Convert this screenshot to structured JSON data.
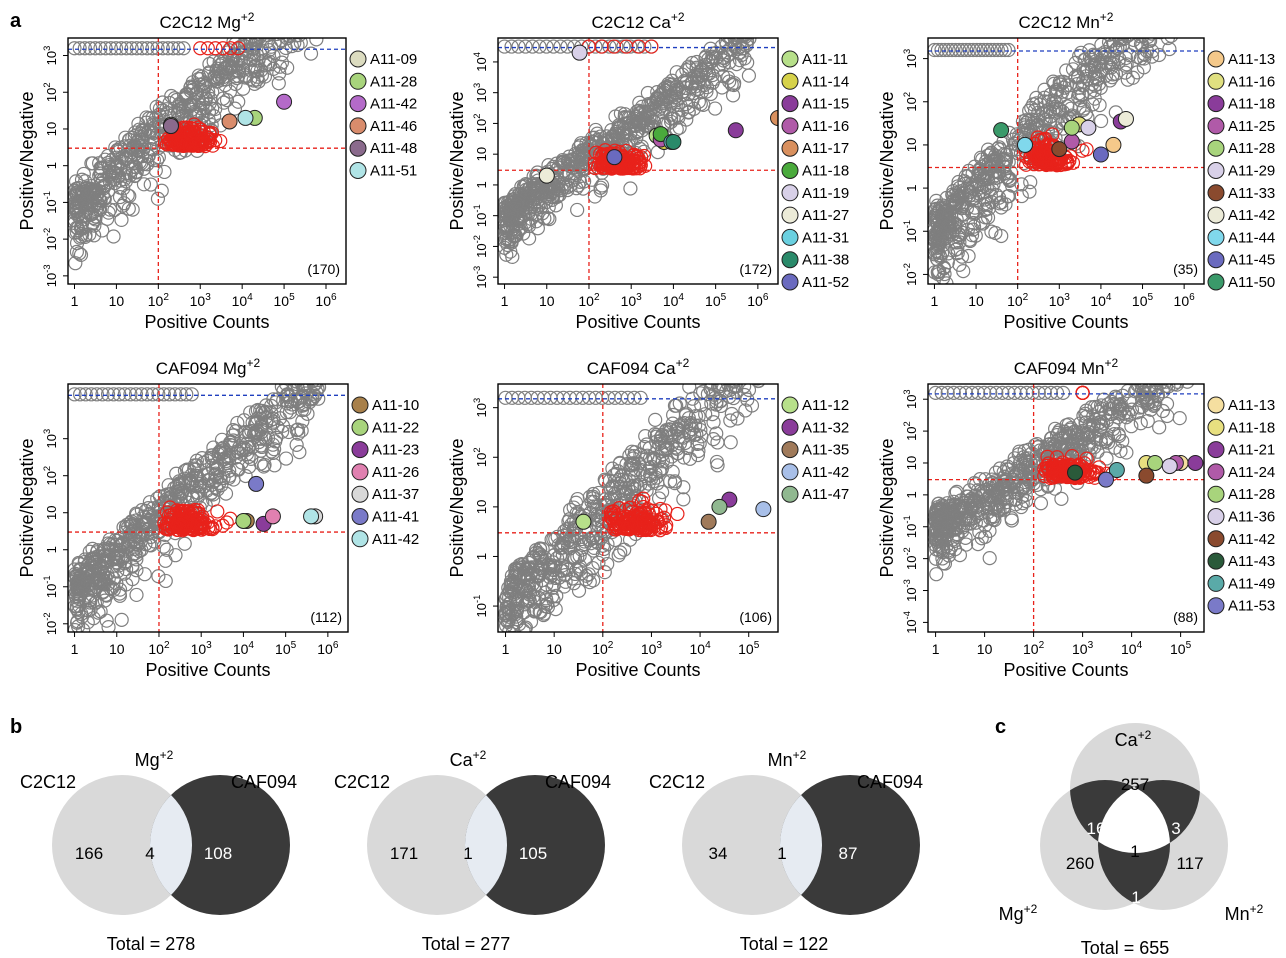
{
  "panel_labels": {
    "a": "a",
    "b": "b",
    "c": "c"
  },
  "colors": {
    "grey_points": "#7f7f7f",
    "red_points": "#e8221b",
    "red_threshold": "#e8221b",
    "blue_threshold": "#1f3fbf",
    "venn_light": "#d9d9d9",
    "venn_dark": "#3a3a3a",
    "venn_overlap": "#e6ebf2"
  },
  "chart_data": [
    {
      "type": "scatter",
      "title": "C2C12 Mg+2",
      "title_base": "C2C12 Mg",
      "title_sup": "+2",
      "xlabel": "Positive Counts",
      "ylabel": "Positive/Negative",
      "x_scale": "log",
      "y_scale": "log",
      "xlim": [
        0.7,
        3000000
      ],
      "ylim": [
        0.0006,
        3000
      ],
      "x_ticks": [
        1,
        10,
        100,
        1000,
        10000,
        100000,
        1000000
      ],
      "x_tick_labels": [
        {
          "base": "1"
        },
        {
          "base": "10"
        },
        {
          "base": "10",
          "exp": "2"
        },
        {
          "base": "10",
          "exp": "3"
        },
        {
          "base": "10",
          "exp": "4"
        },
        {
          "base": "10",
          "exp": "5"
        },
        {
          "base": "10",
          "exp": "6"
        }
      ],
      "y_ticks": [
        0.001,
        0.01,
        0.1,
        1,
        10,
        100,
        1000
      ],
      "y_tick_labels": [
        {
          "base": "10",
          "exp": "-3"
        },
        {
          "base": "10",
          "exp": "-2"
        },
        {
          "base": "10",
          "exp": "-1"
        },
        {
          "base": "1"
        },
        {
          "base": "10"
        },
        {
          "base": "10",
          "exp": "2"
        },
        {
          "base": "10",
          "exp": "3"
        }
      ],
      "x_threshold": 100,
      "y_threshold": 3,
      "annotation": "(170)",
      "highlighted": [
        {
          "label": "A11-09",
          "color": "#dcdcc0",
          "x": 200,
          "y": 13
        },
        {
          "label": "A11-28",
          "color": "#a8d47c",
          "x": 20000,
          "y": 20
        },
        {
          "label": "A11-42",
          "color": "#b46ac9",
          "x": 100000,
          "y": 55
        },
        {
          "label": "A11-46",
          "color": "#d98c6c",
          "x": 5000,
          "y": 16
        },
        {
          "label": "A11-48",
          "color": "#8a6a8c",
          "x": 200,
          "y": 12
        },
        {
          "label": "A11-51",
          "color": "#b0e4e6",
          "x": 12000,
          "y": 20
        }
      ],
      "grey_saturated_x": [
        1,
        400
      ],
      "red_saturated_x": [
        1000,
        8000
      ]
    },
    {
      "type": "scatter",
      "title": "C2C12 Ca+2",
      "title_base": "C2C12 Ca",
      "title_sup": "+2",
      "xlabel": "Positive Counts",
      "ylabel": "Positive/Negative",
      "x_scale": "log",
      "y_scale": "log",
      "xlim": [
        0.7,
        3000000
      ],
      "ylim": [
        0.0006,
        60000
      ],
      "x_ticks": [
        1,
        10,
        100,
        1000,
        10000,
        100000,
        1000000
      ],
      "x_tick_labels": [
        {
          "base": "1"
        },
        {
          "base": "10"
        },
        {
          "base": "10",
          "exp": "2"
        },
        {
          "base": "10",
          "exp": "3"
        },
        {
          "base": "10",
          "exp": "4"
        },
        {
          "base": "10",
          "exp": "5"
        },
        {
          "base": "10",
          "exp": "6"
        }
      ],
      "y_ticks": [
        0.001,
        0.01,
        0.1,
        1,
        10,
        100,
        1000,
        10000
      ],
      "y_tick_labels": [
        {
          "base": "10",
          "exp": "-3"
        },
        {
          "base": "10",
          "exp": "-2"
        },
        {
          "base": "10",
          "exp": "-1"
        },
        {
          "base": "1"
        },
        {
          "base": "10"
        },
        {
          "base": "10",
          "exp": "2"
        },
        {
          "base": "10",
          "exp": "3"
        },
        {
          "base": "10",
          "exp": "4"
        }
      ],
      "x_threshold": 100,
      "y_threshold": 3,
      "annotation": "(172)",
      "highlighted": [
        {
          "label": "A11-11",
          "color": "#b7e08a",
          "x": 4000,
          "y": 40
        },
        {
          "label": "A11-14",
          "color": "#d6d24a",
          "x": 6000,
          "y": 25
        },
        {
          "label": "A11-15",
          "color": "#8a3c9a",
          "x": 300000,
          "y": 60
        },
        {
          "label": "A11-16",
          "color": "#b05aa8",
          "x": 5000,
          "y": 30
        },
        {
          "label": "A11-17",
          "color": "#d9905e",
          "x": 3000000,
          "y": 150
        },
        {
          "label": "A11-18",
          "color": "#4aaa3c",
          "x": 5000,
          "y": 45
        },
        {
          "label": "A11-19",
          "color": "#d8d0e8",
          "x": 60,
          "y": 20000
        },
        {
          "label": "A11-27",
          "color": "#ecebd8",
          "x": 10,
          "y": 2
        },
        {
          "label": "A11-31",
          "color": "#6ad0e0",
          "x": 9000,
          "y": 25
        },
        {
          "label": "A11-38",
          "color": "#2a8a6a",
          "x": 10000,
          "y": 25
        },
        {
          "label": "A11-52",
          "color": "#6a6abf",
          "x": 400,
          "y": 8
        }
      ],
      "grey_saturated_x": [
        1,
        3000
      ],
      "red_saturated_x": [
        100,
        3000
      ]
    },
    {
      "type": "scatter",
      "title": "C2C12 Mn+2",
      "title_base": "C2C12 Mn",
      "title_sup": "+2",
      "xlabel": "Positive Counts",
      "ylabel": "Positive/Negative",
      "x_scale": "log",
      "y_scale": "log",
      "xlim": [
        0.7,
        3000000
      ],
      "ylim": [
        0.006,
        3000
      ],
      "x_ticks": [
        1,
        10,
        100,
        1000,
        10000,
        100000,
        1000000
      ],
      "x_tick_labels": [
        {
          "base": "1"
        },
        {
          "base": "10"
        },
        {
          "base": "10",
          "exp": "2"
        },
        {
          "base": "10",
          "exp": "3"
        },
        {
          "base": "10",
          "exp": "4"
        },
        {
          "base": "10",
          "exp": "5"
        },
        {
          "base": "10",
          "exp": "6"
        }
      ],
      "y_ticks": [
        0.01,
        0.1,
        1,
        10,
        100,
        1000
      ],
      "y_tick_labels": [
        {
          "base": "10",
          "exp": "-2"
        },
        {
          "base": "10",
          "exp": "-1"
        },
        {
          "base": "1"
        },
        {
          "base": "10"
        },
        {
          "base": "10",
          "exp": "2"
        },
        {
          "base": "10",
          "exp": "3"
        }
      ],
      "x_threshold": 100,
      "y_threshold": 3,
      "annotation": "(35)",
      "highlighted": [
        {
          "label": "A11-13",
          "color": "#f5c98a",
          "x": 20000,
          "y": 10
        },
        {
          "label": "A11-16",
          "color": "#e0e080",
          "x": 3000,
          "y": 30
        },
        {
          "label": "A11-18",
          "color": "#8a3c9a",
          "x": 30000,
          "y": 35
        },
        {
          "label": "A11-25",
          "color": "#b05aa8",
          "x": 2000,
          "y": 12
        },
        {
          "label": "A11-28",
          "color": "#a8d47c",
          "x": 2000,
          "y": 25
        },
        {
          "label": "A11-29",
          "color": "#d8d0e8",
          "x": 5000,
          "y": 25
        },
        {
          "label": "A11-33",
          "color": "#8a4a2e",
          "x": 1000,
          "y": 8
        },
        {
          "label": "A11-42",
          "color": "#ecebd8",
          "x": 40000,
          "y": 40
        },
        {
          "label": "A11-44",
          "color": "#80d8ec",
          "x": 150,
          "y": 10
        },
        {
          "label": "A11-45",
          "color": "#6a6abf",
          "x": 10000,
          "y": 6
        },
        {
          "label": "A11-50",
          "color": "#3a9a6a",
          "x": 40,
          "y": 22
        }
      ],
      "grey_saturated_x": [
        1,
        60
      ],
      "red_saturated_x": []
    },
    {
      "type": "scatter",
      "title": "CAF094 Mg+2",
      "title_base": "CAF094 Mg",
      "title_sup": "+2",
      "xlabel": "Positive Counts",
      "ylabel": "Positive/Negative",
      "x_scale": "log",
      "y_scale": "log",
      "xlim": [
        0.7,
        3000000
      ],
      "ylim": [
        0.006,
        30000
      ],
      "x_ticks": [
        1,
        10,
        100,
        1000,
        10000,
        100000,
        1000000
      ],
      "x_tick_labels": [
        {
          "base": "1"
        },
        {
          "base": "10"
        },
        {
          "base": "10",
          "exp": "2"
        },
        {
          "base": "10",
          "exp": "3"
        },
        {
          "base": "10",
          "exp": "4"
        },
        {
          "base": "10",
          "exp": "5"
        },
        {
          "base": "10",
          "exp": "6"
        }
      ],
      "y_ticks": [
        0.01,
        0.1,
        1,
        10,
        100,
        1000
      ],
      "y_tick_labels": [
        {
          "base": "10",
          "exp": "-2"
        },
        {
          "base": "10",
          "exp": "-1"
        },
        {
          "base": "1"
        },
        {
          "base": "10"
        },
        {
          "base": "10",
          "exp": "2"
        },
        {
          "base": "10",
          "exp": "3"
        }
      ],
      "x_threshold": 100,
      "y_threshold": 3,
      "annotation": "(112)",
      "highlighted": [
        {
          "label": "A11-10",
          "color": "#a8804a",
          "x": 12000,
          "y": 6
        },
        {
          "label": "A11-22",
          "color": "#a8d47c",
          "x": 10000,
          "y": 6
        },
        {
          "label": "A11-23",
          "color": "#8a3c9a",
          "x": 30000,
          "y": 5
        },
        {
          "label": "A11-26",
          "color": "#e080b0",
          "x": 50000,
          "y": 8
        },
        {
          "label": "A11-37",
          "color": "#d8d8d8",
          "x": 500000,
          "y": 8
        },
        {
          "label": "A11-41",
          "color": "#7a7ac8",
          "x": 20000,
          "y": 60
        },
        {
          "label": "A11-42",
          "color": "#b0e4e6",
          "x": 400000,
          "y": 8
        }
      ],
      "grey_saturated_x": [
        1,
        600
      ],
      "red_saturated_x": []
    },
    {
      "type": "scatter",
      "title": "CAF094 Ca+2",
      "title_base": "CAF094 Ca",
      "title_sup": "+2",
      "xlabel": "Positive Counts",
      "ylabel": "Positive/Negative",
      "x_scale": "log",
      "y_scale": "log",
      "xlim": [
        0.7,
        400000
      ],
      "ylim": [
        0.03,
        3000
      ],
      "x_ticks": [
        1,
        10,
        100,
        1000,
        10000,
        100000
      ],
      "x_tick_labels": [
        {
          "base": "1"
        },
        {
          "base": "10"
        },
        {
          "base": "10",
          "exp": "2"
        },
        {
          "base": "10",
          "exp": "3"
        },
        {
          "base": "10",
          "exp": "4"
        },
        {
          "base": "10",
          "exp": "5"
        }
      ],
      "y_ticks": [
        0.1,
        1,
        10,
        100,
        1000
      ],
      "y_tick_labels": [
        {
          "base": "10",
          "exp": "-1"
        },
        {
          "base": "1"
        },
        {
          "base": "10"
        },
        {
          "base": "10",
          "exp": "2"
        },
        {
          "base": "10",
          "exp": "3"
        }
      ],
      "x_threshold": 100,
      "y_threshold": 3,
      "annotation": "(106)",
      "highlighted": [
        {
          "label": "A11-12",
          "color": "#b7e08a",
          "x": 40,
          "y": 5
        },
        {
          "label": "A11-32",
          "color": "#8a3c9a",
          "x": 40000,
          "y": 14
        },
        {
          "label": "A11-35",
          "color": "#a07a5a",
          "x": 15000,
          "y": 5
        },
        {
          "label": "A11-42",
          "color": "#a8bfe8",
          "x": 200000,
          "y": 9
        },
        {
          "label": "A11-47",
          "color": "#90b890",
          "x": 25000,
          "y": 10
        }
      ],
      "grey_saturated_x": [
        1,
        600
      ],
      "red_saturated_x": []
    },
    {
      "type": "scatter",
      "title": "CAF094 Mn+2",
      "title_base": "CAF094 Mn",
      "title_sup": "+2",
      "xlabel": "Positive Counts",
      "ylabel": "Positive/Negative",
      "x_scale": "log",
      "y_scale": "log",
      "xlim": [
        0.7,
        300000
      ],
      "ylim": [
        5e-05,
        3000
      ],
      "x_ticks": [
        1,
        10,
        100,
        1000,
        10000,
        100000
      ],
      "x_tick_labels": [
        {
          "base": "1"
        },
        {
          "base": "10"
        },
        {
          "base": "10",
          "exp": "2"
        },
        {
          "base": "10",
          "exp": "3"
        },
        {
          "base": "10",
          "exp": "4"
        },
        {
          "base": "10",
          "exp": "5"
        }
      ],
      "y_ticks": [
        0.0001,
        0.001,
        0.01,
        0.1,
        1,
        10,
        100,
        1000
      ],
      "y_tick_labels": [
        {
          "base": "10",
          "exp": "-4"
        },
        {
          "base": "10",
          "exp": "-3"
        },
        {
          "base": "10",
          "exp": "-2"
        },
        {
          "base": "10",
          "exp": "-1"
        },
        {
          "base": "1"
        },
        {
          "base": "10"
        },
        {
          "base": "10",
          "exp": "2"
        },
        {
          "base": "10",
          "exp": "3"
        }
      ],
      "x_threshold": 100,
      "y_threshold": 3,
      "annotation": "(88)",
      "highlighted": [
        {
          "label": "A11-13",
          "color": "#f5dfa0",
          "x": 100000,
          "y": 10
        },
        {
          "label": "A11-18",
          "color": "#e8e080",
          "x": 20000,
          "y": 10
        },
        {
          "label": "A11-21",
          "color": "#8a3c9a",
          "x": 200000,
          "y": 10
        },
        {
          "label": "A11-24",
          "color": "#b05aa8",
          "x": 80000,
          "y": 10
        },
        {
          "label": "A11-28",
          "color": "#a8d47c",
          "x": 30000,
          "y": 10
        },
        {
          "label": "A11-36",
          "color": "#d8d0e8",
          "x": 60000,
          "y": 8
        },
        {
          "label": "A11-42",
          "color": "#8a4a2e",
          "x": 20000,
          "y": 4
        },
        {
          "label": "A11-43",
          "color": "#2a5a3a",
          "x": 700,
          "y": 5
        },
        {
          "label": "A11-49",
          "color": "#5aaaa8",
          "x": 5000,
          "y": 6
        },
        {
          "label": "A11-53",
          "color": "#7a7ac8",
          "x": 3000,
          "y": 3
        }
      ],
      "grey_saturated_x": [
        1,
        400
      ],
      "red_saturated_x": [
        1000,
        1000
      ]
    }
  ],
  "venn_pairs": [
    {
      "ion_base": "Mg",
      "ion_sup": "+2",
      "left_label": "C2C12",
      "right_label": "CAF094",
      "left_only": "166",
      "overlap": "4",
      "right_only": "108",
      "total": "Total = 278"
    },
    {
      "ion_base": "Ca",
      "ion_sup": "+2",
      "left_label": "C2C12",
      "right_label": "CAF094",
      "left_only": "171",
      "overlap": "1",
      "right_only": "105",
      "total": "Total = 277"
    },
    {
      "ion_base": "Mn",
      "ion_sup": "+2",
      "left_label": "C2C12",
      "right_label": "CAF094",
      "left_only": "34",
      "overlap": "1",
      "right_only": "87",
      "total": "Total = 122"
    }
  ],
  "venn_triple": {
    "top_base": "Ca",
    "top_sup": "+2",
    "left_base": "Mg",
    "left_sup": "+2",
    "right_base": "Mn",
    "right_sup": "+2",
    "top_only": "257",
    "left_only": "260",
    "right_only": "117",
    "top_left": "16",
    "top_right": "3",
    "left_right": "1",
    "center": "1",
    "total": "Total = 655"
  }
}
